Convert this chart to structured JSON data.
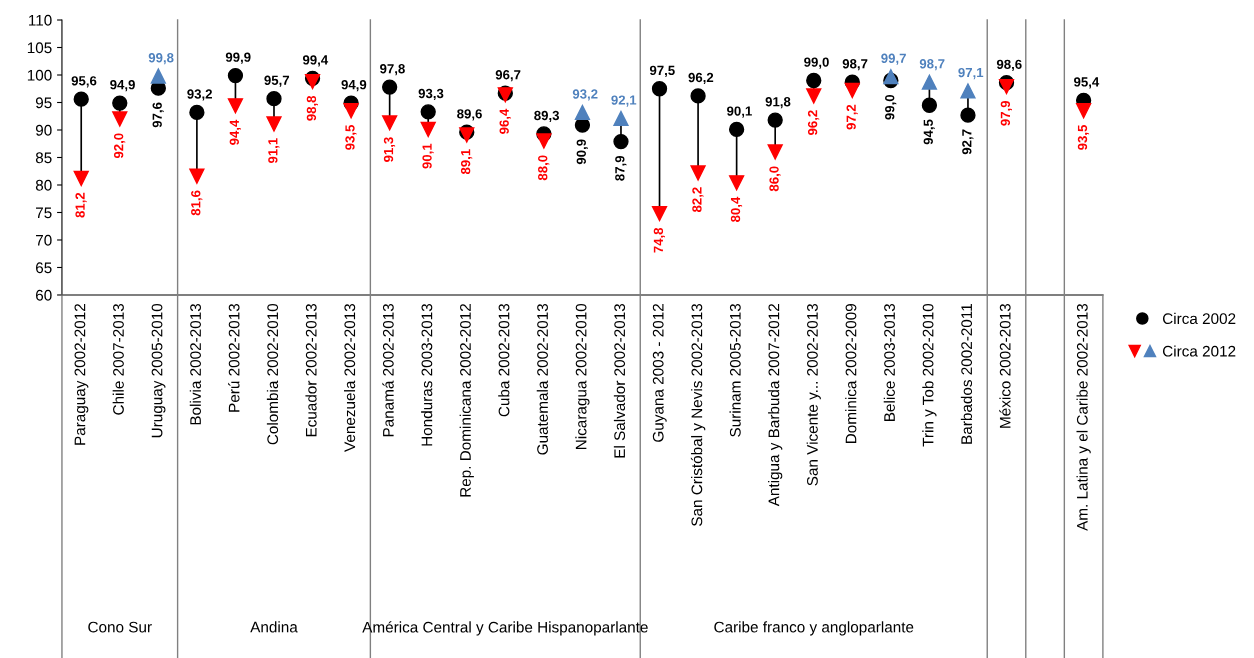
{
  "chart_data": {
    "type": "scatter",
    "categories": [
      "Paraguay 2002-2012",
      "Chile 2007-2013",
      "Uruguay 2005-2010",
      "Bolivia 2002-2013",
      "Perú 2002-2013",
      "Colombia 2002-2010",
      "Ecuador 2002-2013",
      "Venezuela 2002-2013",
      "Panamá 2002-2013",
      "Honduras 2003-2013",
      "Rep. Dominicana 2002-2012",
      "Cuba 2002-2013",
      "Guatemala 2002-2013",
      "Nicaragua 2002-2010",
      "El Salvador 2002-2013",
      "Guyana 2003 - 2012",
      "San Cristóbal y Nevis 2002-2013",
      "Surinam 2005-2013",
      "Antigua y Barbuda 2007-2012",
      "San Vicente y... 2002-2013",
      "Dominica 2002-2009",
      "Belice 2003-2013",
      "Trin y Tob 2002-2010",
      "Barbados 2002-2011",
      "México 2002-2013",
      null,
      "Am. Latina y el Caribe 2002-2013"
    ],
    "series": [
      {
        "name": "Circa 2002",
        "color": "#000000",
        "marker": "circle",
        "values": [
          95.6,
          94.9,
          97.6,
          93.2,
          99.9,
          95.7,
          99.4,
          94.9,
          97.8,
          93.3,
          89.6,
          96.7,
          89.3,
          90.9,
          87.9,
          97.5,
          96.2,
          90.1,
          91.8,
          99.0,
          98.7,
          99.0,
          94.5,
          92.7,
          98.6,
          null,
          95.4
        ],
        "value_labels": [
          "95,6",
          "94,9",
          "97,6",
          "93,2",
          "99,9",
          "95,7",
          "99,4",
          "94,9",
          "97,8",
          "93,3",
          "89,6",
          "96,7",
          "89,3",
          "90,9",
          "87,9",
          "97,5",
          "96,2",
          "90,1",
          "91,8",
          "99,0",
          "98,7",
          "99,0",
          "94,5",
          "92,7",
          "98,6",
          null,
          "95,4"
        ]
      },
      {
        "name": "Circa 2012",
        "marker": "triangle",
        "colors": [
          "#ff0000",
          "#ff0000",
          "#4f81bd",
          "#ff0000",
          "#ff0000",
          "#ff0000",
          "#ff0000",
          "#ff0000",
          "#ff0000",
          "#ff0000",
          "#ff0000",
          "#ff0000",
          "#ff0000",
          "#4f81bd",
          "#4f81bd",
          "#ff0000",
          "#ff0000",
          "#ff0000",
          "#ff0000",
          "#ff0000",
          "#ff0000",
          "#4f81bd",
          "#4f81bd",
          "#4f81bd",
          "#ff0000",
          null,
          "#ff0000"
        ],
        "values": [
          81.2,
          92.0,
          99.8,
          81.6,
          94.4,
          91.1,
          98.8,
          93.5,
          91.3,
          90.1,
          89.1,
          96.4,
          88.0,
          93.2,
          92.1,
          74.8,
          82.2,
          80.4,
          86.0,
          96.2,
          97.2,
          99.7,
          98.7,
          97.1,
          97.9,
          null,
          93.5
        ],
        "value_labels": [
          "81,2",
          "92,0",
          "99,8",
          "81,6",
          "94,4",
          "91,1",
          "98,8",
          "93,5",
          "91,3",
          "90,1",
          "89,1",
          "96,4",
          "88,0",
          "93,2",
          "92,1",
          "74,8",
          "82,2",
          "80,4",
          "86,0",
          "96,2",
          "97,2",
          "99,7",
          "98,7",
          "97,1",
          "97,9",
          null,
          "93,5"
        ]
      }
    ],
    "ylim": [
      60,
      110
    ],
    "yticks": [
      60,
      65,
      70,
      75,
      80,
      85,
      90,
      95,
      100,
      105,
      110
    ],
    "grid": false,
    "legend": "right",
    "annotations": [
      "Cono Sur",
      "Andina",
      "América Central y Caribe Hispanoparlante",
      "Caribe franco y angloparlante"
    ]
  }
}
